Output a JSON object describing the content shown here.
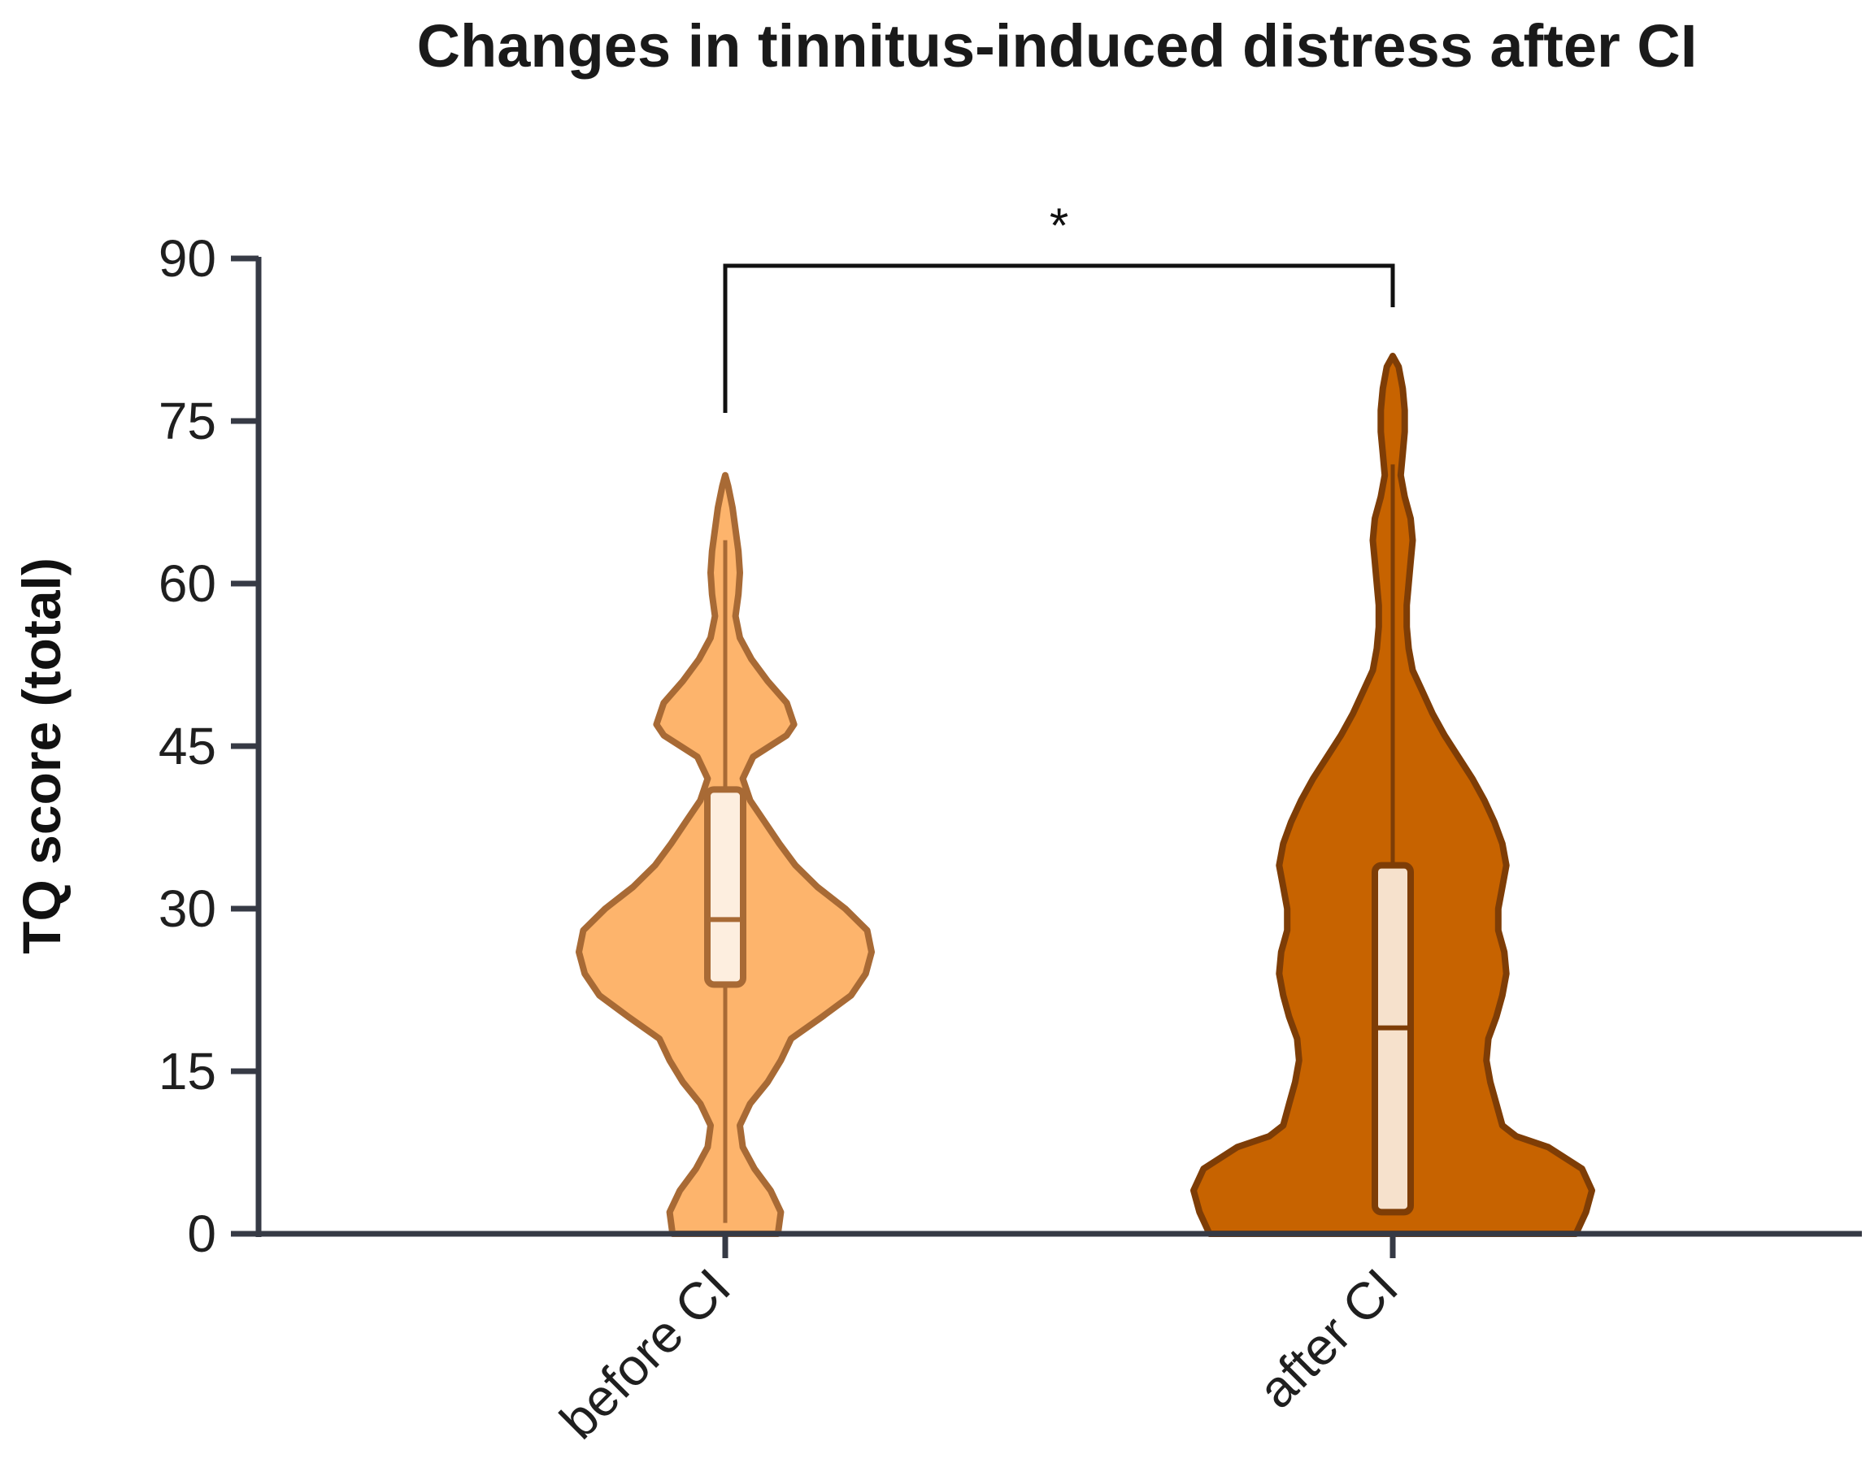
{
  "chart_data": {
    "type": "violin",
    "title": "Changes in tinnitus-induced distress after CI",
    "xlabel": "",
    "ylabel": "TQ score (total)",
    "ylim": [
      0,
      90
    ],
    "yticks": [
      0,
      15,
      30,
      45,
      60,
      75,
      90
    ],
    "categories": [
      "before CI",
      "after CI"
    ],
    "grid": false,
    "significance": {
      "pair": [
        "before CI",
        "after CI"
      ],
      "label": "*"
    },
    "series": [
      {
        "category": "before CI",
        "fill_color": "#FDB46C",
        "edge_color": "#A86A35",
        "box_fill": "#FDEEDF",
        "range": [
          1,
          64
        ],
        "box": {
          "q1": 23,
          "median": 29,
          "q3": 41
        },
        "density": [
          [
            0,
            0.36
          ],
          [
            2,
            0.38
          ],
          [
            4,
            0.31
          ],
          [
            6,
            0.2
          ],
          [
            8,
            0.12
          ],
          [
            10,
            0.1
          ],
          [
            12,
            0.17
          ],
          [
            14,
            0.29
          ],
          [
            16,
            0.38
          ],
          [
            18,
            0.45
          ],
          [
            20,
            0.66
          ],
          [
            22,
            0.86
          ],
          [
            24,
            0.96
          ],
          [
            26,
            1.0
          ],
          [
            28,
            0.97
          ],
          [
            30,
            0.82
          ],
          [
            32,
            0.63
          ],
          [
            34,
            0.48
          ],
          [
            36,
            0.37
          ],
          [
            38,
            0.27
          ],
          [
            40,
            0.17
          ],
          [
            42,
            0.12
          ],
          [
            44,
            0.19
          ],
          [
            46,
            0.42
          ],
          [
            47,
            0.47
          ],
          [
            49,
            0.42
          ],
          [
            51,
            0.29
          ],
          [
            53,
            0.18
          ],
          [
            55,
            0.1
          ],
          [
            57,
            0.07
          ],
          [
            59,
            0.09
          ],
          [
            61,
            0.1
          ],
          [
            63,
            0.09
          ],
          [
            65,
            0.07
          ],
          [
            67,
            0.05
          ],
          [
            69,
            0.02
          ],
          [
            70,
            0
          ]
        ]
      },
      {
        "category": "after CI",
        "fill_color": "#C76300",
        "edge_color": "#7E3D06",
        "box_fill": "#F6E1CC",
        "range": [
          2,
          71
        ],
        "box": {
          "q1": 2,
          "median": 19,
          "q3": 34
        },
        "density": [
          [
            0,
            0.92
          ],
          [
            2,
            0.97
          ],
          [
            4,
            1.0
          ],
          [
            6,
            0.95
          ],
          [
            8,
            0.78
          ],
          [
            9,
            0.62
          ],
          [
            10,
            0.55
          ],
          [
            12,
            0.52
          ],
          [
            14,
            0.49
          ],
          [
            16,
            0.47
          ],
          [
            18,
            0.48
          ],
          [
            20,
            0.52
          ],
          [
            22,
            0.55
          ],
          [
            24,
            0.57
          ],
          [
            26,
            0.56
          ],
          [
            28,
            0.53
          ],
          [
            30,
            0.53
          ],
          [
            32,
            0.55
          ],
          [
            34,
            0.57
          ],
          [
            36,
            0.55
          ],
          [
            38,
            0.51
          ],
          [
            40,
            0.46
          ],
          [
            42,
            0.4
          ],
          [
            44,
            0.33
          ],
          [
            46,
            0.26
          ],
          [
            48,
            0.2
          ],
          [
            50,
            0.15
          ],
          [
            52,
            0.1
          ],
          [
            54,
            0.08
          ],
          [
            56,
            0.07
          ],
          [
            58,
            0.07
          ],
          [
            60,
            0.08
          ],
          [
            62,
            0.09
          ],
          [
            64,
            0.1
          ],
          [
            66,
            0.09
          ],
          [
            68,
            0.06
          ],
          [
            70,
            0.04
          ],
          [
            72,
            0.05
          ],
          [
            74,
            0.06
          ],
          [
            76,
            0.06
          ],
          [
            78,
            0.05
          ],
          [
            80,
            0.03
          ],
          [
            81,
            0
          ]
        ]
      }
    ]
  }
}
